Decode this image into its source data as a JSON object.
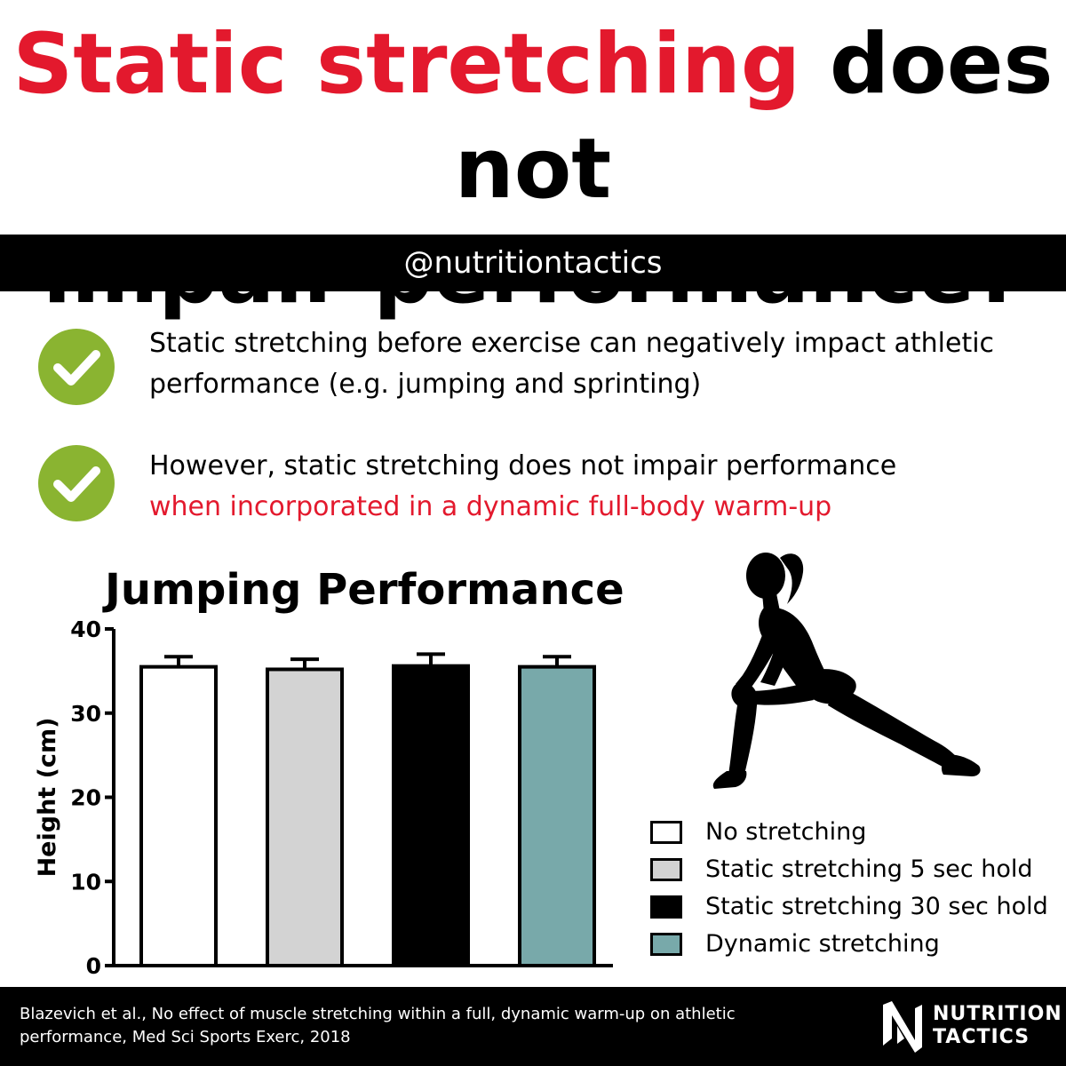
{
  "title": {
    "highlight": "Static stretching",
    "rest_line1": " does not",
    "line2": "impair performance?"
  },
  "handle": "@nutritiontactics",
  "points": [
    {
      "text": "Static stretching before exercise can negatively impact athletic performance (e.g. jumping and sprinting)",
      "highlight": ""
    },
    {
      "text": "However, static stretching does not impair performance",
      "highlight": "when incorporated in a dynamic full-body warm-up"
    }
  ],
  "colors": {
    "accent_red": "#e3192d",
    "check_green": "#8ab431",
    "teal": "#78a9aa",
    "grey": "#d3d3d3"
  },
  "icons": {
    "check": "checkmark-circle-icon",
    "silhouette": "stretching-woman-silhouette",
    "logo": "nutrition-tactics-logo-icon"
  },
  "chart_data": {
    "type": "bar",
    "title": "Jumping Performance",
    "ylabel": "Height (cm)",
    "xlabel": "",
    "ylim": [
      0,
      40
    ],
    "yticks": [
      0,
      10,
      20,
      30,
      40
    ],
    "grid": false,
    "legend_position": "bottom-right",
    "categories": [
      "No stretching",
      "Static stretching 5 sec hold",
      "Static stretching 30 sec hold",
      "Dynamic stretching"
    ],
    "values": [
      35.5,
      35.2,
      35.6,
      35.5
    ],
    "error_upper": [
      1.2,
      1.2,
      1.4,
      1.2
    ],
    "colors": [
      "#ffffff",
      "#d3d3d3",
      "#000000",
      "#78a9aa"
    ]
  },
  "footer": {
    "citation": "Blazevich et al., No effect of muscle stretching within a full, dynamic warm-up on athletic performance, Med Sci Sports Exerc, 2018",
    "brand_line1": "NUTRITION",
    "brand_line2": "TACTICS"
  }
}
